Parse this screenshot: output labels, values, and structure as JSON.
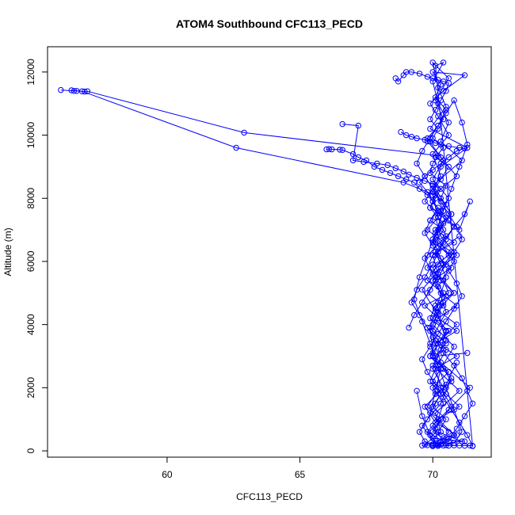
{
  "chart_data": {
    "type": "line",
    "title": "ATOM4 Southbound CFC113_PECD",
    "xlabel": "CFC113_PECD",
    "ylabel": "Altitude (m)",
    "xlim": [
      55.5,
      72.2
    ],
    "ylim": [
      -200,
      12800
    ],
    "x_ticks": [
      60,
      65,
      70
    ],
    "y_ticks": [
      0,
      2000,
      4000,
      6000,
      8000,
      10000,
      12000
    ],
    "series_color": "#0000ff",
    "markers": "open-circle",
    "grid": false,
    "legend": "none",
    "series": [
      {
        "x": [
          56.0,
          56.5,
          56.6,
          56.9,
          57.0,
          62.9,
          70.2,
          70.0,
          69.9,
          70.5,
          70.3,
          70.7,
          70.1,
          70.8,
          70.0,
          69.8,
          70.4,
          70.6,
          69.7,
          70.2,
          70.9,
          70.1,
          69.9,
          70.3,
          70.0,
          70.5,
          71.0,
          70.2,
          69.8,
          70.4,
          70.1,
          69.6,
          70.3,
          70.7,
          70.0,
          69.9,
          70.2,
          70.5,
          70.1,
          70.8,
          69.7,
          70.3,
          70.0,
          70.6,
          70.2,
          69.9,
          70.4,
          71.2,
          70.0,
          70.3,
          70.1,
          70.5,
          70.2,
          69.8,
          70.4,
          70.0,
          70.6,
          70.1,
          70.3,
          70.9,
          70.0,
          70.4,
          70.2,
          69.9,
          70.5,
          70.1,
          70.3,
          70.7,
          70.0,
          70.4,
          70.2,
          70.1,
          70.6,
          71.4,
          70.3,
          70.0,
          70.5,
          70.2,
          70.8,
          70.1,
          70.4,
          70.0,
          71.1,
          70.3,
          70.6,
          70.2,
          70.0,
          70.4,
          70.1,
          71.5
        ],
        "y": [
          11430,
          11400,
          11400,
          11380,
          11390,
          10080,
          9350,
          9100,
          8800,
          8400,
          8000,
          7500,
          7000,
          6600,
          6200,
          5800,
          5400,
          5000,
          4600,
          4200,
          3800,
          3400,
          3000,
          2600,
          2200,
          1800,
          1400,
          1000,
          600,
          300,
          200,
          800,
          1500,
          2300,
          3100,
          3900,
          4700,
          5500,
          6300,
          7100,
          7900,
          8700,
          9400,
          10000,
          10600,
          11000,
          11400,
          11900,
          12000,
          11600,
          11200,
          10800,
          10300,
          9800,
          9200,
          8600,
          8000,
          7400,
          6800,
          6200,
          5600,
          5000,
          4400,
          3800,
          3200,
          2600,
          2000,
          1400,
          800,
          300,
          200,
          700,
          1300,
          2000,
          2800,
          3600,
          4400,
          5200,
          6000,
          6800,
          7600,
          8400,
          9200,
          9800,
          10400,
          11000,
          11700,
          12300,
          12200,
          150
        ]
      },
      {
        "x": [
          56.4,
          56.8,
          62.6,
          68.9,
          70.1,
          69.9,
          70.4,
          70.0,
          70.7,
          70.2,
          69.8,
          70.5,
          70.1,
          70.9,
          70.3,
          69.9,
          70.6,
          70.0,
          70.4,
          70.2,
          70.8,
          69.7,
          70.3,
          70.1,
          71.0,
          70.0,
          70.5,
          70.2,
          69.6,
          70.4,
          70.0,
          70.7,
          70.1,
          70.3,
          71.3,
          69.9,
          70.5,
          70.2,
          70.0,
          70.6,
          70.1,
          70.4,
          69.8,
          70.3,
          70.9,
          70.0,
          70.2,
          70.5,
          69.7,
          70.1,
          70.4,
          70.0,
          70.8,
          70.3,
          70.1,
          69.9,
          70.6,
          70.2,
          70.0,
          71.2
        ],
        "y": [
          11420,
          11390,
          9600,
          8500,
          8100,
          7700,
          7200,
          6700,
          6300,
          5900,
          5400,
          4900,
          4500,
          4000,
          3500,
          3000,
          2500,
          2000,
          1500,
          1000,
          500,
          200,
          600,
          1200,
          1900,
          2700,
          3500,
          4300,
          5100,
          5900,
          6700,
          7500,
          8300,
          9000,
          9600,
          10200,
          10900,
          11500,
          12300,
          11800,
          11100,
          10500,
          9900,
          9300,
          8700,
          8100,
          7400,
          6800,
          6100,
          5400,
          4700,
          4000,
          3300,
          2600,
          1900,
          1200,
          600,
          200,
          400,
          300
        ]
      },
      {
        "x": [
          66.0,
          66.1,
          66.2,
          66.5,
          66.6,
          67.0,
          67.2,
          67.5,
          67.8,
          68.1,
          68.4,
          68.7,
          69.0,
          69.3,
          69.5,
          69.8,
          70.0,
          70.2,
          69.9,
          70.4,
          70.1,
          70.6,
          70.0,
          70.3,
          70.8,
          70.1,
          69.9,
          70.5,
          70.2,
          70.0,
          70.4,
          70.7,
          70.1,
          69.8,
          70.3,
          70.0,
          70.6,
          70.2,
          70.9,
          70.1,
          69.7,
          70.4,
          70.0,
          70.3,
          70.5,
          70.1,
          70.8,
          70.2,
          70.0,
          71.0
        ],
        "y": [
          9550,
          9560,
          9550,
          9540,
          9530,
          9400,
          9300,
          9200,
          9000,
          8900,
          8800,
          8700,
          8600,
          8500,
          8300,
          8100,
          7900,
          7600,
          7300,
          7000,
          6600,
          6200,
          5800,
          5400,
          5000,
          4600,
          4200,
          3800,
          3400,
          3000,
          2600,
          2200,
          1800,
          1400,
          1000,
          600,
          300,
          200,
          500,
          900,
          1400,
          2000,
          2600,
          3200,
          3800,
          4400,
          5000,
          5600,
          6200,
          6800
        ]
      },
      {
        "x": [
          66.6,
          67.2,
          67.0,
          67.4,
          67.9,
          68.3,
          68.6,
          68.9,
          69.1,
          69.4,
          69.7,
          70.0,
          70.3,
          70.1,
          69.9,
          70.5,
          70.2,
          70.0,
          70.7,
          70.3,
          70.1,
          69.8,
          70.4,
          70.0,
          70.6,
          70.2,
          70.9,
          70.1,
          69.9,
          70.3,
          70.0,
          70.5,
          70.2,
          71.1,
          70.0,
          70.4
        ],
        "y": [
          10350,
          10300,
          9200,
          9150,
          9100,
          9050,
          8950,
          8850,
          8750,
          8650,
          8550,
          8450,
          8300,
          8000,
          7700,
          7400,
          7000,
          6600,
          6200,
          5800,
          5400,
          5000,
          4600,
          4200,
          3800,
          3400,
          3000,
          2600,
          2200,
          1800,
          1400,
          1000,
          600,
          300,
          200,
          400
        ]
      },
      {
        "x": [
          68.6,
          68.7,
          68.9,
          69.0,
          69.2,
          69.5,
          69.8,
          70.0,
          70.2,
          70.4,
          70.6,
          70.5,
          70.3,
          70.1,
          69.9,
          70.2,
          70.0,
          70.4,
          70.1,
          70.6,
          70.3,
          70.0,
          70.5,
          70.2,
          69.8,
          70.4,
          70.1,
          70.7,
          70.0,
          70.3,
          70.9,
          70.2,
          70.0,
          70.5,
          70.1,
          71.3
        ],
        "y": [
          11800,
          11700,
          11900,
          12000,
          12000,
          11950,
          11850,
          11800,
          11750,
          11700,
          11650,
          11400,
          11100,
          10800,
          10500,
          10200,
          9900,
          9600,
          9300,
          9000,
          8600,
          8200,
          7800,
          7400,
          7000,
          6600,
          6200,
          5800,
          5400,
          5000,
          4600,
          4200,
          3800,
          3400,
          3000,
          3100
        ]
      },
      {
        "x": [
          68.8,
          69.0,
          69.2,
          69.4,
          69.7,
          69.9,
          70.1,
          70.3,
          70.6,
          71.0,
          71.2,
          70.9,
          70.6,
          70.3,
          70.0,
          69.7,
          69.5,
          69.8,
          70.0,
          70.3,
          70.6,
          71.0,
          71.4,
          71.2,
          70.8,
          70.5,
          70.2,
          70.0,
          69.7,
          69.4,
          69.2,
          69.5,
          69.8,
          70.1,
          70.4,
          70.8,
          71.1,
          71.3,
          71.5,
          71.2,
          70.9,
          70.6,
          70.3,
          70.0,
          69.7,
          69.5,
          69.8,
          70.1,
          70.5,
          70.9
        ],
        "y": [
          10100,
          10000,
          9950,
          9900,
          9850,
          9800,
          9750,
          9700,
          9650,
          9600,
          9580,
          9500,
          9300,
          9100,
          8900,
          8700,
          8500,
          8200,
          7900,
          7600,
          7300,
          7000,
          7900,
          7500,
          7100,
          6700,
          6300,
          5900,
          5500,
          5100,
          4700,
          4300,
          3900,
          3500,
          3100,
          2700,
          2300,
          1900,
          1500,
          1100,
          700,
          400,
          200,
          150,
          300,
          600,
          1000,
          1500,
          2100,
          2800
        ]
      },
      {
        "x": [
          69.1,
          69.3,
          69.6,
          69.9,
          70.2,
          70.5,
          70.8,
          71.1,
          70.9,
          70.6,
          70.3,
          70.0,
          69.7,
          69.4,
          69.6,
          69.9,
          70.2,
          70.5,
          70.8,
          71.1,
          71.3,
          71.0,
          70.7,
          70.4,
          70.1,
          69.8,
          69.5,
          69.3,
          69.6,
          69.9,
          70.2,
          70.5,
          70.8,
          71.1,
          70.8,
          70.5,
          70.2,
          69.9,
          69.6,
          69.4
        ],
        "y": [
          3900,
          4300,
          4700,
          5100,
          5500,
          5900,
          6300,
          6700,
          7100,
          7500,
          7900,
          8300,
          8700,
          9100,
          9500,
          9900,
          10300,
          10700,
          11100,
          10400,
          9700,
          9000,
          8300,
          7600,
          6900,
          6200,
          5500,
          4800,
          4100,
          3400,
          2700,
          2000,
          1300,
          600,
          250,
          180,
          160,
          500,
          1100,
          1900
        ]
      },
      {
        "x": [
          69.6,
          69.8,
          70.0,
          70.2,
          70.4,
          70.6,
          70.8,
          71.0,
          71.2,
          71.4,
          71.5,
          71.3,
          71.0,
          70.7,
          70.4,
          70.1,
          69.8,
          69.6,
          69.9,
          70.2,
          70.5,
          70.8,
          71.1,
          70.9,
          70.6,
          70.3,
          70.0,
          69.7,
          69.9,
          70.2
        ],
        "y": [
          170,
          180,
          170,
          160,
          170,
          165,
          175,
          170,
          165,
          170,
          160,
          500,
          900,
          1300,
          1700,
          2100,
          2500,
          2900,
          3300,
          3700,
          4100,
          4500,
          4900,
          5300,
          5700,
          6100,
          6500,
          6900,
          7300,
          7700
        ]
      }
    ]
  }
}
